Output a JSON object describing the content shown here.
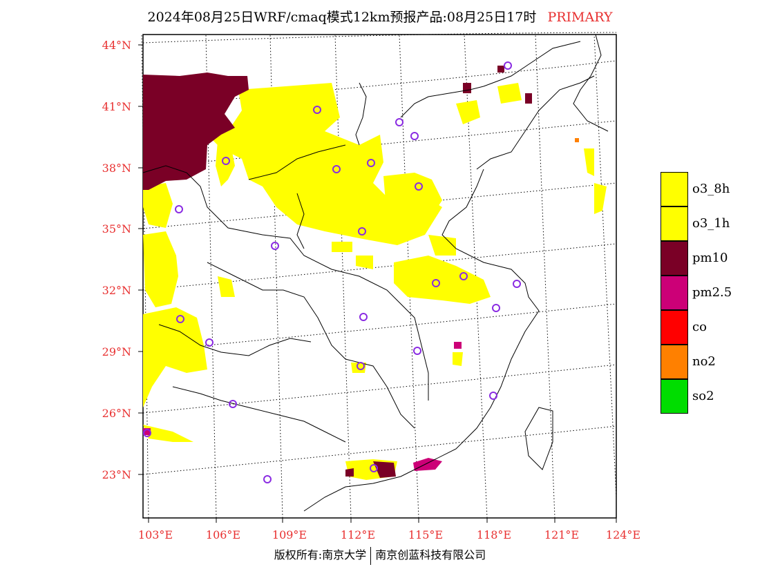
{
  "title": {
    "main": "2024年08月25日WRF/cmaq模式12km预报产品:08月25日17时",
    "tag": "PRIMARY"
  },
  "map": {
    "lat_labels": [
      "44°N",
      "41°N",
      "38°N",
      "35°N",
      "32°N",
      "29°N",
      "26°N",
      "23°N"
    ],
    "lon_labels": [
      "103°E",
      "106°E",
      "109°E",
      "112°E",
      "115°E",
      "118°E",
      "121°E",
      "124°E"
    ],
    "lat_range": [
      21,
      45
    ],
    "lon_range": [
      103,
      124
    ]
  },
  "legend": {
    "items": [
      {
        "label": "o3_8h",
        "color": "#ffff00"
      },
      {
        "label": "o3_1h",
        "color": "#ffff00"
      },
      {
        "label": "pm10",
        "color": "#7a0026"
      },
      {
        "label": "pm2.5",
        "color": "#cc0077"
      },
      {
        "label": "co",
        "color": "#ff0000"
      },
      {
        "label": "no2",
        "color": "#ff8000"
      },
      {
        "label": "so2",
        "color": "#00dd00"
      }
    ]
  },
  "footer": {
    "left": "版权所有:南京大学",
    "right": "南京创蓝科技有限公司"
  },
  "stations_icon": "circle-marker-icon"
}
